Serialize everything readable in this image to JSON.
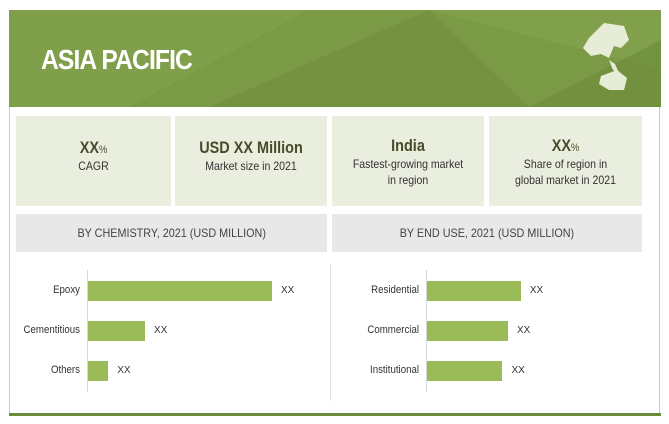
{
  "header": {
    "title": "ASIA PACIFIC",
    "map_icon": "asia-pacific-map-icon"
  },
  "cards": [
    {
      "value": "XX",
      "unit": "%",
      "label": "CAGR"
    },
    {
      "value": "USD XX Million",
      "label": "Market size in 2021"
    },
    {
      "value": "India",
      "label": "Fastest-growing market in region"
    },
    {
      "value": "XX",
      "unit": "%",
      "label": "Share of region in global market in 2021"
    }
  ],
  "colors": {
    "header": "#7a9a45",
    "bar": "#9bbb59",
    "card": "#eaeedf"
  },
  "chart_data": [
    {
      "type": "bar",
      "orientation": "horizontal",
      "title": "BY CHEMISTRY, 2021 (USD MILLION)",
      "categories": [
        "Epoxy",
        "Cementitious",
        "Others"
      ],
      "data_labels": [
        "XX",
        "XX",
        "XX"
      ],
      "relative_values": [
        1.0,
        0.31,
        0.11
      ]
    },
    {
      "type": "bar",
      "orientation": "horizontal",
      "title": "BY END USE, 2021 (USD MILLION)",
      "categories": [
        "Residential",
        "Commercial",
        "Institutional"
      ],
      "data_labels": [
        "XX",
        "XX",
        "XX"
      ],
      "relative_values": [
        0.51,
        0.44,
        0.41
      ]
    }
  ]
}
